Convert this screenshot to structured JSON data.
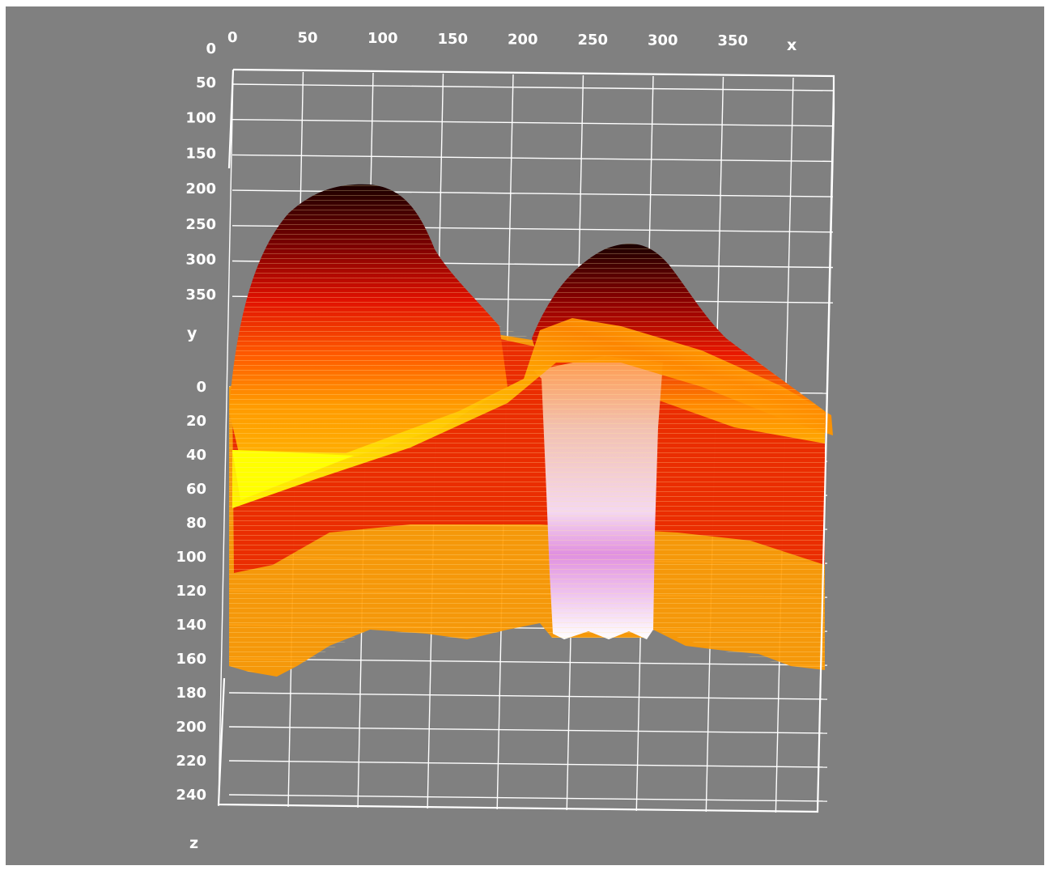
{
  "chart_data": {
    "type": "surface3d",
    "title": "",
    "xlabel": "x",
    "ylabel": "y",
    "zlabel": "z",
    "x_ticks": [
      0,
      50,
      100,
      150,
      200,
      250,
      300,
      350
    ],
    "y_ticks": [
      0,
      50,
      100,
      150,
      200,
      250,
      300,
      350
    ],
    "z_ticks": [
      0,
      20,
      40,
      60,
      80,
      100,
      120,
      140,
      160,
      180,
      200,
      220,
      240
    ],
    "xlim": [
      0,
      430
    ],
    "ylim": [
      0,
      400
    ],
    "zlim": [
      0,
      250
    ],
    "colormap": [
      "#1a0000",
      "#c40000",
      "#ff3000",
      "#ff9000",
      "#ffff00",
      "#ffffff",
      "#ff80ff"
    ],
    "peaks": [
      {
        "x": 95,
        "peak_level": 200
      },
      {
        "x": 280,
        "peak_level": 270
      },
      {
        "x": 265,
        "trough_level": 150
      }
    ],
    "grid": true,
    "background": "#808080"
  }
}
